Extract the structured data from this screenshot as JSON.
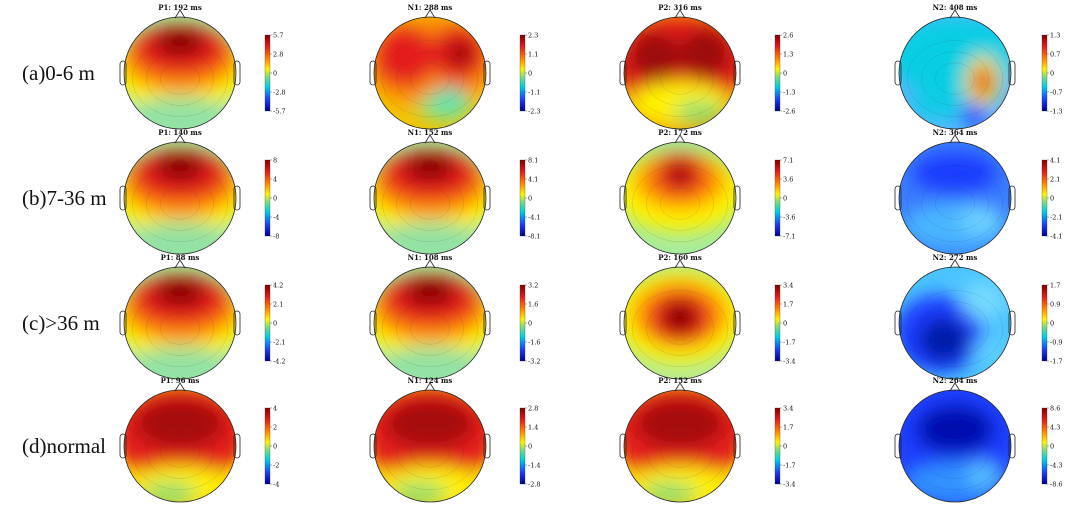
{
  "figure": {
    "rows": [
      {
        "label": "(a)0-6 m",
        "panels": [
          {
            "title": "P1: 192 ms",
            "pattern": "frontal-positive",
            "ticks": [
              "5.7",
              "2.8",
              "0",
              "-2.8",
              "-5.7"
            ]
          },
          {
            "title": "N1: 288 ms",
            "pattern": "bilateral-positive",
            "ticks": [
              "2.3",
              "1.1",
              "0",
              "-1.1",
              "-2.3"
            ]
          },
          {
            "title": "P2: 316 ms",
            "pattern": "bilateral-positive-strong",
            "ticks": [
              "2.6",
              "1.3",
              "0",
              "-1.3",
              "-2.6"
            ]
          },
          {
            "title": "N2: 408 ms",
            "pattern": "negative-with-right-hotspot",
            "ticks": [
              "1.3",
              "0.7",
              "0",
              "-0.7",
              "-1.3"
            ]
          }
        ]
      },
      {
        "label": "(b)7-36 m",
        "panels": [
          {
            "title": "P1: 140 ms",
            "pattern": "frontal-positive",
            "ticks": [
              "8",
              "4",
              "0",
              "-4",
              "-8"
            ]
          },
          {
            "title": "N1: 152 ms",
            "pattern": "frontal-positive",
            "ticks": [
              "8.1",
              "4.1",
              "0",
              "-4.1",
              "-8.1"
            ]
          },
          {
            "title": "P2: 172 ms",
            "pattern": "frontal-focal",
            "ticks": [
              "7.1",
              "3.6",
              "0",
              "-3.6",
              "-7.1"
            ]
          },
          {
            "title": "N2: 364 ms",
            "pattern": "negative-diffuse",
            "ticks": [
              "4.1",
              "2.1",
              "0",
              "-2.1",
              "-4.1"
            ]
          }
        ]
      },
      {
        "label": "(c)>36 m",
        "panels": [
          {
            "title": "P1: 88 ms",
            "pattern": "frontal-positive",
            "ticks": [
              "4.2",
              "2.1",
              "0",
              "-2.1",
              "-4.2"
            ]
          },
          {
            "title": "N1: 108 ms",
            "pattern": "frontal-positive",
            "ticks": [
              "3.2",
              "1.6",
              "0",
              "-1.6",
              "-3.2"
            ]
          },
          {
            "title": "P2: 160 ms",
            "pattern": "central-focal",
            "ticks": [
              "3.4",
              "1.7",
              "0",
              "-1.7",
              "-3.4"
            ]
          },
          {
            "title": "N2: 272 ms",
            "pattern": "negative-diagonal",
            "ticks": [
              "1.7",
              "0.9",
              "0",
              "-0.9",
              "-1.7"
            ]
          }
        ]
      },
      {
        "label": "(d)normal",
        "panels": [
          {
            "title": "P1: 96 ms",
            "pattern": "broad-positive",
            "ticks": [
              "4",
              "2",
              "0",
              "-2",
              "-4"
            ]
          },
          {
            "title": "N1: 124 ms",
            "pattern": "broad-positive",
            "ticks": [
              "2.8",
              "1.4",
              "0",
              "-1.4",
              "-2.8"
            ]
          },
          {
            "title": "P2: 152 ms",
            "pattern": "broad-positive",
            "ticks": [
              "3.4",
              "1.7",
              "0",
              "-1.7",
              "-3.4"
            ]
          },
          {
            "title": "N2: 264 ms",
            "pattern": "negative-strong",
            "ticks": [
              "8.6",
              "4.3",
              "0",
              "-4.3",
              "-8.6"
            ]
          }
        ]
      }
    ],
    "colors": {
      "dark_red": "#7f0000",
      "red": "#e41a1c",
      "orange": "#ff8c00",
      "yellow": "#fff200",
      "green": "#7fdc7f",
      "cyan": "#00d0e0",
      "blue": "#1c3cff",
      "dark_blue": "#00008b",
      "outline": "#222222"
    }
  }
}
